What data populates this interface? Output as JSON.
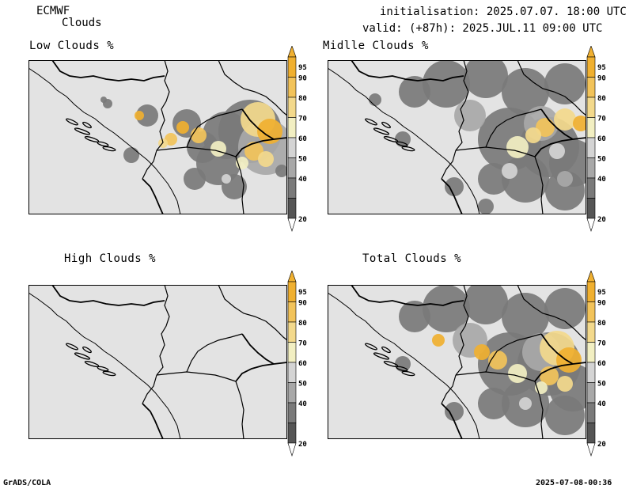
{
  "header": {
    "model": "ECMWF",
    "product": "Clouds",
    "init_line": "initialisation: 2025.07.07. 18:00 UTC",
    "valid_line": "valid: (+87h): 2025.JUL.11 09:00 UTC"
  },
  "panels": [
    {
      "id": "low",
      "title": "Low Clouds %"
    },
    {
      "id": "middle",
      "title": "Midlle Clouds %"
    },
    {
      "id": "high",
      "title": "High Clouds %"
    },
    {
      "id": "total",
      "title": "Total Clouds %"
    }
  ],
  "colorbar": {
    "labels": [
      "95",
      "90",
      "80",
      "70",
      "60",
      "50",
      "40",
      "20"
    ],
    "colors": [
      "#f0b030",
      "#f2c35a",
      "#f3d98c",
      "#f2efc2",
      "#d4d4d4",
      "#a8a8a8",
      "#7a7a7a",
      "#555555"
    ]
  },
  "footer": {
    "left": "GrADS/COLA",
    "right": "2025-07-08-00:36"
  }
}
